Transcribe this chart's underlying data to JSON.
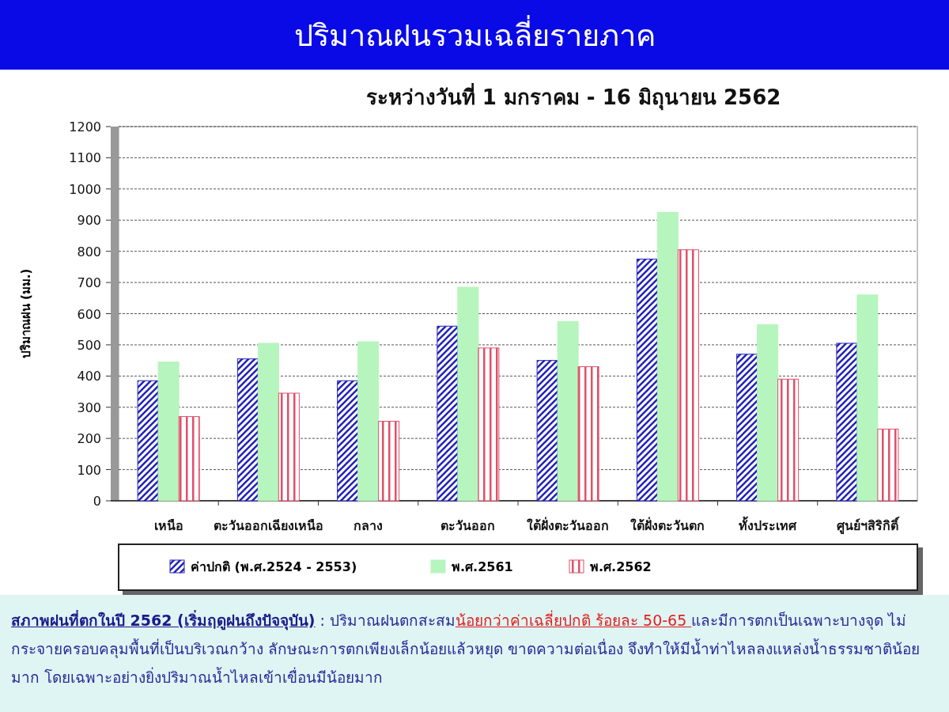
{
  "chart_data": {
    "type": "bar",
    "title": "ปริมาณฝนรวมเฉลี่ยรายภาค",
    "subtitle": "ระหว่างวันที่  1 มกราคม - 16 มิถุนายน 2562",
    "ylabel": "ปริมาณฝน (มม.)",
    "categories": [
      "เหนือ",
      "ตะวันออกเฉียงเหนือ",
      "กลาง",
      "ตะวันออก",
      "ใต้ฝั่งตะวันออก",
      "ใต้ฝั่งตะวันตก",
      "ทั้งประเทศ",
      "ศูนย์ฯสิริกิติ์"
    ],
    "series": [
      {
        "name": "ค่าปกติ (พ.ศ.2524 - 2553)",
        "color": "#2323b8",
        "values": [
          385,
          455,
          385,
          560,
          450,
          775,
          470,
          505
        ]
      },
      {
        "name": "พ.ศ.2561",
        "color": "#b6f5bd",
        "values": [
          445,
          505,
          510,
          685,
          575,
          925,
          565,
          660
        ]
      },
      {
        "name": "พ.ศ.2562",
        "color": "#e0506a",
        "values": [
          270,
          345,
          255,
          490,
          430,
          805,
          390,
          230
        ]
      }
    ],
    "ylim": [
      0,
      1200
    ],
    "yticks": [
      0,
      100,
      200,
      300,
      400,
      500,
      600,
      700,
      800,
      900,
      1000,
      1100,
      1200
    ],
    "grid": "y",
    "legend": "bottom",
    "annotations": [
      "สภาพฝนที่ตกในปี 2562 (เริ่มฤดูฝนถึงปัจจุบัน)",
      " : ปริมาณฝนตกสะสม",
      "น้อยกว่าค่าเฉลี่ยปกติ ร้อยละ 50-65 ",
      " และมีการตกเป็นเฉพาะบางจุด ไม่กระจายครอบคลุมพื้นที่เป็นบริเวณกว้าง ลักษณะการตกเพียงเล็กน้อยแล้วหยุด ขาดความต่อเนื่อง จึงทำให้มีน้ำท่าไหลลงแหล่งน้ำธรรมชาติน้อยมาก โดยเฉพาะอย่างยิ่งปริมาณน้ำไหลเข้าเขื่อนมีน้อยมาก"
    ]
  }
}
